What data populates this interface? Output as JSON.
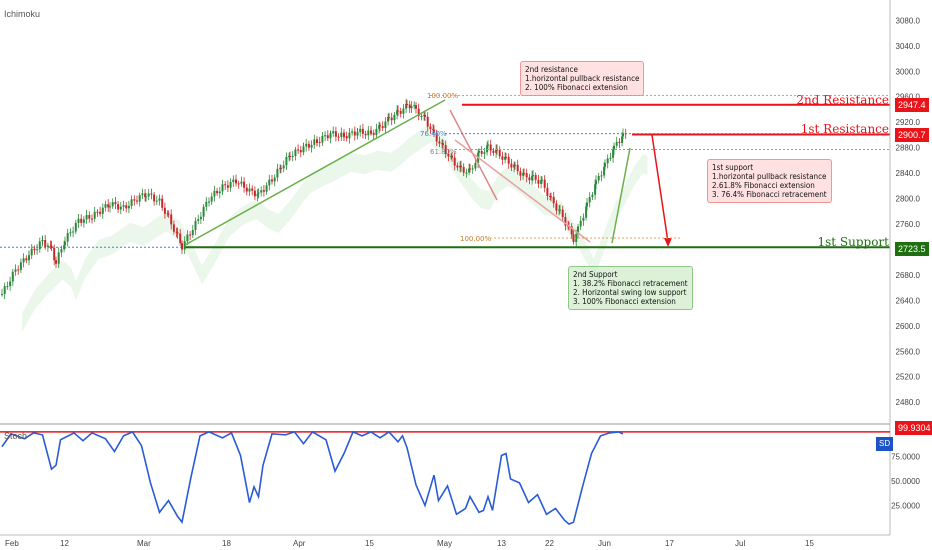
{
  "indicator_top": "Ichimoku",
  "indicator_bottom": "Stoch",
  "sd_badge": "SD",
  "levels": {
    "r2": {
      "label": "2nd Resistance",
      "price": "2947.4",
      "value": 2947.4,
      "color": "#e8141a"
    },
    "r1": {
      "label": "1st Resistance",
      "price": "2900.7",
      "value": 2900.7,
      "color": "#e8141a"
    },
    "s1": {
      "label": "1st Support",
      "price": "2723.5",
      "value": 2723.5,
      "color": "#1f6e10"
    }
  },
  "stoch_value": "99.9304",
  "annotations": {
    "r2": "2nd resistance\n1.horizontal pullback resistance\n2. 100% Fibonacci extension",
    "r1": "1st support\n1.horizontal pullback resistance\n2.61.8% Fibonacci extension\n3. 76.4% Fibonacci retracement",
    "s2": "2nd Support\n1. 38.2% Fibonacci retracement\n2. Horizontal swing low support\n3. 100% Fibonacci extension"
  },
  "fib_labels": {
    "top_100": "100.00%",
    "f764": "76.40%",
    "f618": "61.80%",
    "bottom_100": "100.00%"
  },
  "chart_data": {
    "type": "line",
    "x_tick_labels": [
      "Feb",
      "12",
      "Mar",
      "18",
      "Apr",
      "15",
      "May",
      "13",
      "22",
      "Jun",
      "17",
      "Jul",
      "15"
    ],
    "y_tick_labels": [
      "3080.0",
      "3040.0",
      "3000.0",
      "2960.0",
      "2920.0",
      "2880.0",
      "2840.0",
      "2800.0",
      "2760.0",
      "2720.0",
      "2680.0",
      "2640.0",
      "2600.0",
      "2560.0",
      "2520.0",
      "2480.0"
    ],
    "ylim": [
      2452,
      3112
    ],
    "price_series": [
      {
        "x": 0,
        "y": 2650
      },
      {
        "x": 3,
        "y": 2688
      },
      {
        "x": 6,
        "y": 2712
      },
      {
        "x": 9,
        "y": 2733
      },
      {
        "x": 11,
        "y": 2720
      },
      {
        "x": 12,
        "y": 2700
      },
      {
        "x": 14,
        "y": 2735
      },
      {
        "x": 17,
        "y": 2765
      },
      {
        "x": 20,
        "y": 2772
      },
      {
        "x": 24,
        "y": 2792
      },
      {
        "x": 27,
        "y": 2785
      },
      {
        "x": 30,
        "y": 2800
      },
      {
        "x": 32,
        "y": 2808
      },
      {
        "x": 35,
        "y": 2795
      },
      {
        "x": 37,
        "y": 2770
      },
      {
        "x": 39,
        "y": 2740
      },
      {
        "x": 40,
        "y": 2725
      },
      {
        "x": 43,
        "y": 2760
      },
      {
        "x": 46,
        "y": 2800
      },
      {
        "x": 49,
        "y": 2818
      },
      {
        "x": 52,
        "y": 2828
      },
      {
        "x": 55,
        "y": 2812
      },
      {
        "x": 57,
        "y": 2806
      },
      {
        "x": 60,
        "y": 2830
      },
      {
        "x": 62,
        "y": 2850
      },
      {
        "x": 64,
        "y": 2868
      },
      {
        "x": 67,
        "y": 2880
      },
      {
        "x": 70,
        "y": 2890
      },
      {
        "x": 73,
        "y": 2902
      },
      {
        "x": 76,
        "y": 2898
      },
      {
        "x": 79,
        "y": 2905
      },
      {
        "x": 82,
        "y": 2902
      },
      {
        "x": 84,
        "y": 2912
      },
      {
        "x": 86,
        "y": 2925
      },
      {
        "x": 88,
        "y": 2935
      },
      {
        "x": 90,
        "y": 2945
      },
      {
        "x": 91,
        "y": 2948
      },
      {
        "x": 92,
        "y": 2938
      },
      {
        "x": 94,
        "y": 2925
      },
      {
        "x": 96,
        "y": 2900
      },
      {
        "x": 98,
        "y": 2880
      },
      {
        "x": 100,
        "y": 2860
      },
      {
        "x": 102,
        "y": 2845
      },
      {
        "x": 104,
        "y": 2842
      },
      {
        "x": 106,
        "y": 2870
      },
      {
        "x": 108,
        "y": 2880
      },
      {
        "x": 110,
        "y": 2872
      },
      {
        "x": 112,
        "y": 2860
      },
      {
        "x": 114,
        "y": 2848
      },
      {
        "x": 116,
        "y": 2835
      },
      {
        "x": 118,
        "y": 2832
      },
      {
        "x": 120,
        "y": 2825
      },
      {
        "x": 122,
        "y": 2798
      },
      {
        "x": 124,
        "y": 2778
      },
      {
        "x": 126,
        "y": 2752
      },
      {
        "x": 127,
        "y": 2736
      },
      {
        "x": 128,
        "y": 2752
      },
      {
        "x": 130,
        "y": 2790
      },
      {
        "x": 132,
        "y": 2825
      },
      {
        "x": 134,
        "y": 2852
      },
      {
        "x": 136,
        "y": 2880
      },
      {
        "x": 138,
        "y": 2900
      },
      {
        "x": 139,
        "y": 2897
      }
    ],
    "stoch_series": [
      {
        "x": 0,
        "y": 85
      },
      {
        "x": 2,
        "y": 98
      },
      {
        "x": 5,
        "y": 93
      },
      {
        "x": 7,
        "y": 99
      },
      {
        "x": 9,
        "y": 97
      },
      {
        "x": 11,
        "y": 62
      },
      {
        "x": 12,
        "y": 66
      },
      {
        "x": 13,
        "y": 92
      },
      {
        "x": 16,
        "y": 99
      },
      {
        "x": 18,
        "y": 91
      },
      {
        "x": 20,
        "y": 99
      },
      {
        "x": 23,
        "y": 93
      },
      {
        "x": 25,
        "y": 80
      },
      {
        "x": 27,
        "y": 96
      },
      {
        "x": 29,
        "y": 100
      },
      {
        "x": 31,
        "y": 86
      },
      {
        "x": 33,
        "y": 48
      },
      {
        "x": 35,
        "y": 18
      },
      {
        "x": 37,
        "y": 30
      },
      {
        "x": 39,
        "y": 14
      },
      {
        "x": 40,
        "y": 8
      },
      {
        "x": 42,
        "y": 54
      },
      {
        "x": 44,
        "y": 96
      },
      {
        "x": 46,
        "y": 100
      },
      {
        "x": 49,
        "y": 94
      },
      {
        "x": 51,
        "y": 99
      },
      {
        "x": 53,
        "y": 76
      },
      {
        "x": 55,
        "y": 28
      },
      {
        "x": 56,
        "y": 44
      },
      {
        "x": 57,
        "y": 34
      },
      {
        "x": 58,
        "y": 66
      },
      {
        "x": 60,
        "y": 98
      },
      {
        "x": 63,
        "y": 97
      },
      {
        "x": 65,
        "y": 100
      },
      {
        "x": 67,
        "y": 88
      },
      {
        "x": 69,
        "y": 100
      },
      {
        "x": 72,
        "y": 92
      },
      {
        "x": 74,
        "y": 60
      },
      {
        "x": 76,
        "y": 78
      },
      {
        "x": 78,
        "y": 100
      },
      {
        "x": 80,
        "y": 96
      },
      {
        "x": 82,
        "y": 100
      },
      {
        "x": 84,
        "y": 94
      },
      {
        "x": 86,
        "y": 100
      },
      {
        "x": 88,
        "y": 90
      },
      {
        "x": 89,
        "y": 96
      },
      {
        "x": 90,
        "y": 84
      },
      {
        "x": 92,
        "y": 46
      },
      {
        "x": 94,
        "y": 25
      },
      {
        "x": 96,
        "y": 56
      },
      {
        "x": 97,
        "y": 30
      },
      {
        "x": 99,
        "y": 45
      },
      {
        "x": 101,
        "y": 16
      },
      {
        "x": 103,
        "y": 22
      },
      {
        "x": 104,
        "y": 34
      },
      {
        "x": 106,
        "y": 18
      },
      {
        "x": 107,
        "y": 20
      },
      {
        "x": 108,
        "y": 34
      },
      {
        "x": 109,
        "y": 20
      },
      {
        "x": 111,
        "y": 76
      },
      {
        "x": 112,
        "y": 78
      },
      {
        "x": 113,
        "y": 52
      },
      {
        "x": 115,
        "y": 48
      },
      {
        "x": 117,
        "y": 28
      },
      {
        "x": 119,
        "y": 36
      },
      {
        "x": 121,
        "y": 16
      },
      {
        "x": 123,
        "y": 22
      },
      {
        "x": 125,
        "y": 10
      },
      {
        "x": 126,
        "y": 6
      },
      {
        "x": 127,
        "y": 8
      },
      {
        "x": 129,
        "y": 44
      },
      {
        "x": 131,
        "y": 78
      },
      {
        "x": 133,
        "y": 96
      },
      {
        "x": 135,
        "y": 99
      },
      {
        "x": 137,
        "y": 100
      },
      {
        "x": 138,
        "y": 98
      }
    ],
    "stoch_ylim": [
      0,
      104
    ],
    "stoch_ticks": [
      "99.9304",
      "75.0000",
      "50.0000",
      "25.0000"
    ]
  }
}
